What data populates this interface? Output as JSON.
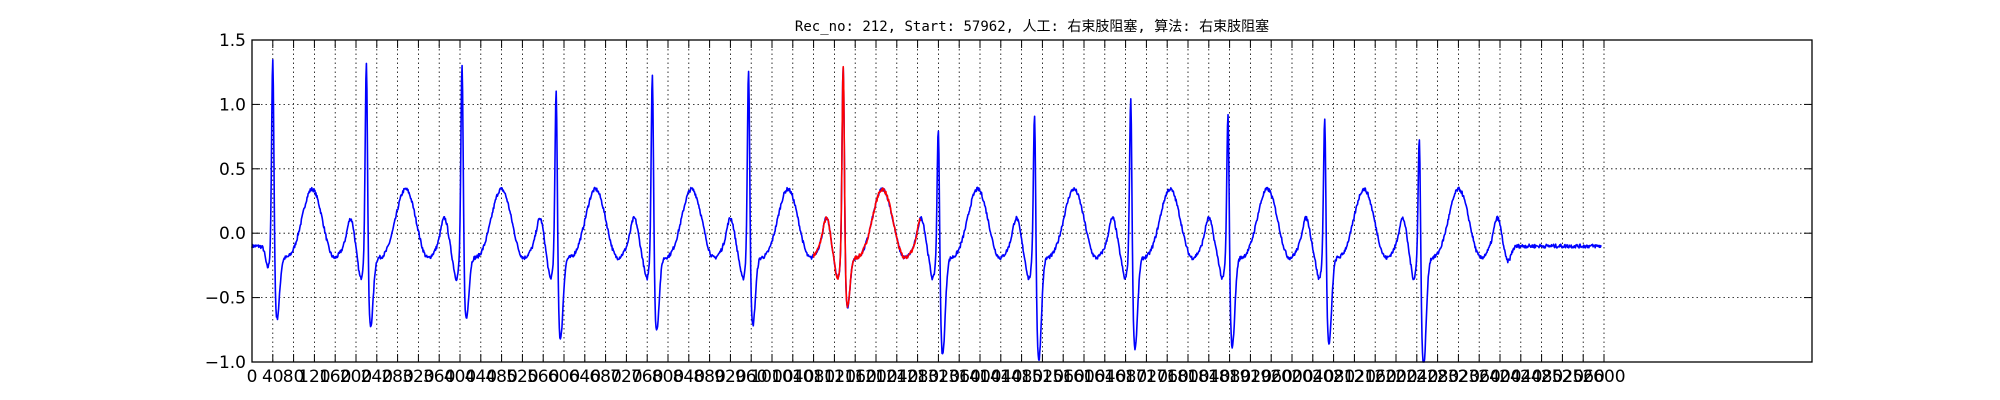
{
  "chart_data": {
    "type": "line",
    "title": "Rec_no: 212, Start: 57962, 人工: 右束肢阻塞, 算法: 右束肢阻塞",
    "xlabel": "",
    "ylabel": "",
    "xlim": [
      0,
      3000
    ],
    "ylim": [
      -1.0,
      1.5
    ],
    "grid": true,
    "y_ticks": [
      -1.0,
      -0.5,
      0.0,
      0.5,
      1.0,
      1.5
    ],
    "y_tick_labels": [
      "−1.0",
      "−0.5",
      "0.0",
      "0.5",
      "1.0",
      "1.5"
    ],
    "x_tick_labels": [
      "0",
      "40",
      "80",
      "120",
      "160",
      "200",
      "240",
      "280",
      "320",
      "360",
      "400",
      "440",
      "480",
      "520",
      "560",
      "600",
      "640",
      "680",
      "720",
      "760",
      "800",
      "840",
      "880",
      "920",
      "960",
      "1000",
      "1040",
      "1080",
      "1120",
      "1160",
      "1200",
      "1240",
      "1280",
      "1320",
      "1360",
      "1400",
      "1440",
      "1480",
      "1520",
      "1560",
      "1600",
      "1640",
      "1680",
      "1720",
      "1760",
      "1800",
      "1840",
      "1880",
      "1920",
      "1960",
      "2000",
      "2040",
      "2080",
      "2120",
      "2160",
      "2200",
      "2240",
      "2280",
      "2320",
      "2360",
      "2400",
      "2440",
      "2480",
      "2520",
      "2560",
      "2600"
    ],
    "beats": [
      {
        "r": 40,
        "peak": 1.42,
        "s": -0.56
      },
      {
        "r": 220,
        "peak": 1.43,
        "s": -0.62
      },
      {
        "r": 404,
        "peak": 1.38,
        "s": -0.56
      },
      {
        "r": 585,
        "peak": 1.22,
        "s": -0.72
      },
      {
        "r": 770,
        "peak": 1.34,
        "s": -0.65
      },
      {
        "r": 955,
        "peak": 1.36,
        "s": -0.61
      },
      {
        "r": 1137,
        "peak": 1.36,
        "s": -0.47
      },
      {
        "r": 1320,
        "peak": 0.97,
        "s": -0.84
      },
      {
        "r": 1505,
        "peak": 1.09,
        "s": -0.88
      },
      {
        "r": 1690,
        "peak": 1.19,
        "s": -0.79
      },
      {
        "r": 1877,
        "peak": 1.06,
        "s": -0.78
      },
      {
        "r": 2063,
        "peak": 1.03,
        "s": -0.76
      },
      {
        "r": 2245,
        "peak": 0.92,
        "s": -0.93
      }
    ],
    "series": [
      {
        "color": "#0000ff",
        "x_range": [
          0,
          2595
        ]
      },
      {
        "color": "#ff0000",
        "x_range": [
          1080,
          1285
        ]
      }
    ]
  }
}
